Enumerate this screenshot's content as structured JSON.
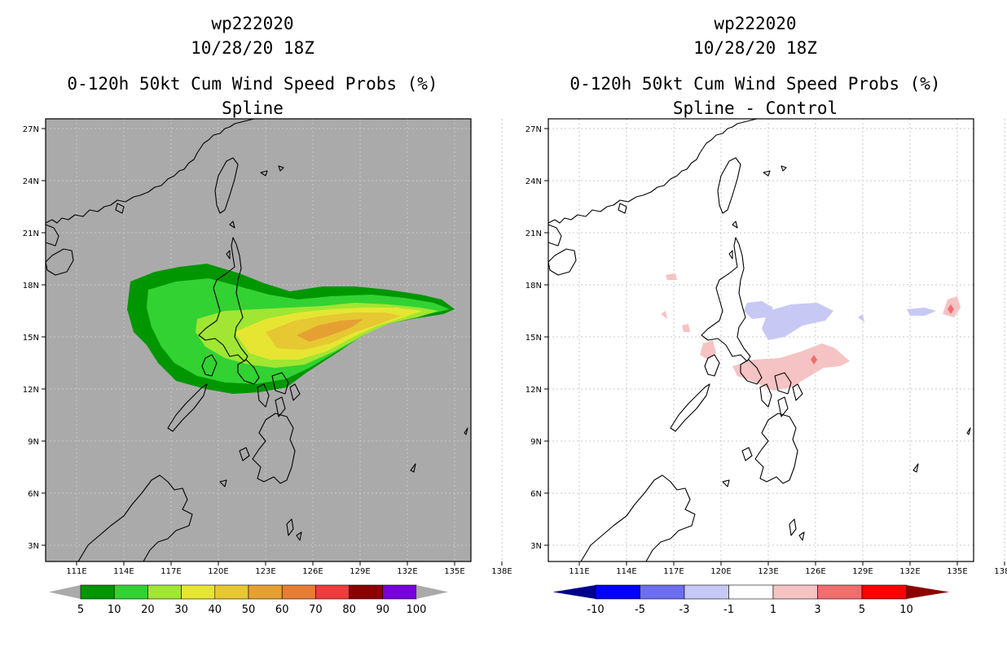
{
  "left_panel": {
    "storm_id": "wp222020",
    "datetime": "10/28/20 18Z",
    "product": "0-120h 50kt Cum Wind Speed Probs (%)",
    "subtitle": "Spline"
  },
  "right_panel": {
    "storm_id": "wp222020",
    "datetime": "10/28/20 18Z",
    "product": "0-120h 50kt Cum Wind Speed Probs (%)",
    "subtitle": "Spline - Control"
  },
  "map": {
    "lon_ticks": [
      "111E",
      "114E",
      "117E",
      "120E",
      "123E",
      "126E",
      "129E",
      "132E",
      "135E",
      "138E"
    ],
    "lat_ticks": [
      "27N",
      "24N",
      "21N",
      "18N",
      "15N",
      "12N",
      "9N",
      "6N",
      "3N"
    ]
  },
  "left_colorbar": {
    "labels": [
      "5",
      "10",
      "20",
      "30",
      "40",
      "50",
      "60",
      "70",
      "80",
      "90",
      "100"
    ],
    "colors": [
      "#009600",
      "#32d232",
      "#a0e632",
      "#e6e632",
      "#e6c832",
      "#e6a032",
      "#e67d32",
      "#f03c3c",
      "#8c0000",
      "#7800dc"
    ],
    "under_color": "#aaaaaa",
    "over_color": "#aaaaaa"
  },
  "right_colorbar": {
    "labels": [
      "-10",
      "-5",
      "-3",
      "-1",
      "1",
      "3",
      "5",
      "10"
    ],
    "colors": [
      "#0000ff",
      "#6e6ef0",
      "#c8c8f5",
      "#ffffff",
      "#f5c3c3",
      "#f06e6e",
      "#ff0000"
    ],
    "under_color": "#00008c",
    "over_color": "#8c0000"
  }
}
